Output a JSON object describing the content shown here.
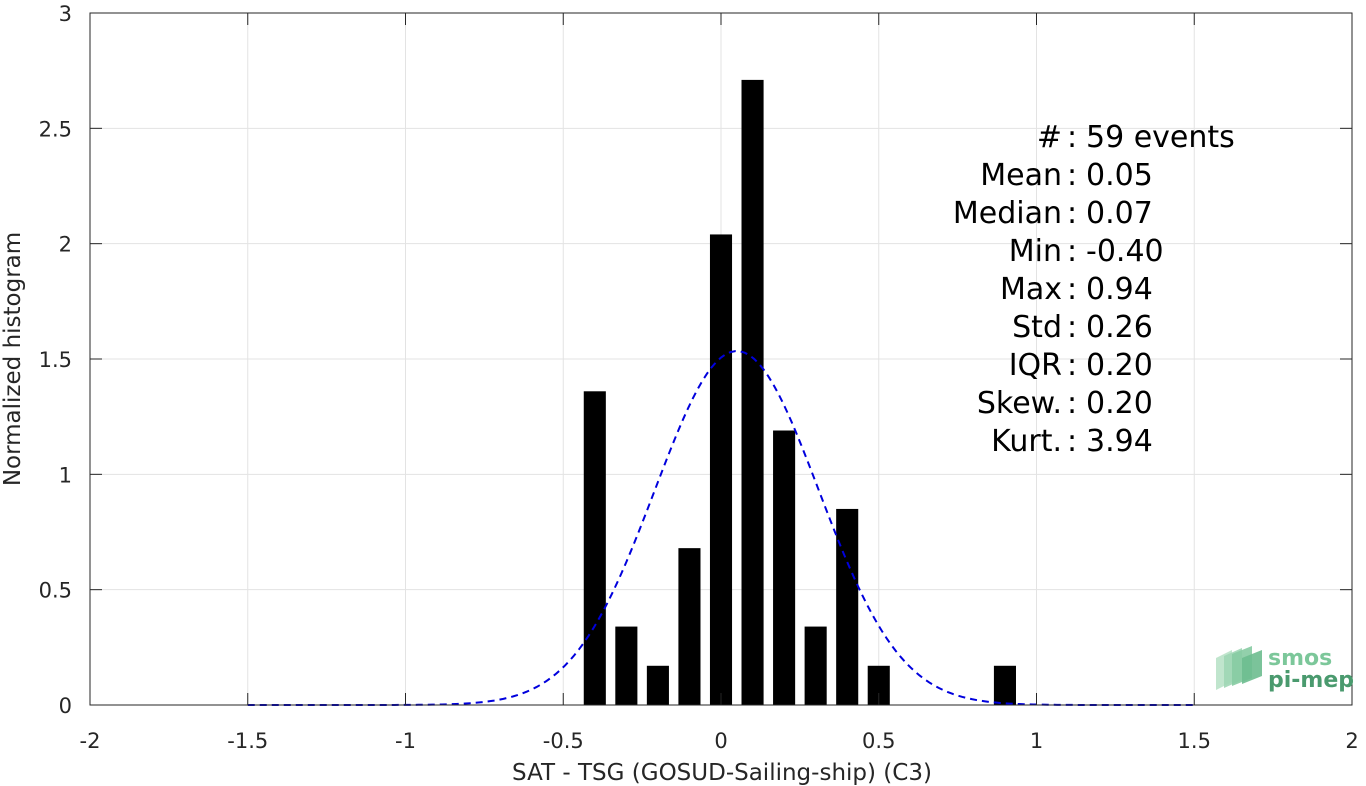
{
  "chart_data": {
    "type": "bar",
    "xlabel": "SAT - TSG (GOSUD-Sailing-ship) (C3)",
    "ylabel": "Normalized histogram",
    "xlim": [
      -2,
      2
    ],
    "ylim": [
      0,
      3
    ],
    "xticks": [
      -2,
      -1.5,
      -1,
      -0.5,
      0,
      0.5,
      1,
      1.5,
      2
    ],
    "yticks": [
      0,
      0.5,
      1,
      1.5,
      2,
      2.5,
      3
    ],
    "xtick_labels": [
      "-2",
      "-1.5",
      "-1",
      "-0.5",
      "0",
      "0.5",
      "1",
      "1.5",
      "2"
    ],
    "ytick_labels": [
      "0",
      "0.5",
      "1",
      "1.5",
      "2",
      "2.5",
      "3"
    ],
    "grid": true,
    "bar_color": "#000000",
    "bar_width": 0.07,
    "bins": {
      "x": [
        -0.4,
        -0.3,
        -0.2,
        -0.1,
        0.0,
        0.1,
        0.2,
        0.3,
        0.4,
        0.5,
        0.9
      ],
      "values": [
        1.36,
        0.34,
        0.17,
        0.68,
        2.04,
        2.71,
        1.19,
        0.34,
        0.85,
        0.17,
        0.17
      ]
    },
    "fit_curve": {
      "style": "dashed",
      "color": "#0000dd",
      "x_range": [
        -1.5,
        1.5
      ],
      "mean": 0.05,
      "std": 0.26
    },
    "stats": [
      {
        "label": "#",
        "value": "59 events"
      },
      {
        "label": "Mean",
        "value": "0.05"
      },
      {
        "label": "Median",
        "value": "0.07"
      },
      {
        "label": "Min",
        "value": "-0.40"
      },
      {
        "label": "Max",
        "value": "0.94"
      },
      {
        "label": "Std",
        "value": "0.26"
      },
      {
        "label": "IQR",
        "value": "0.20"
      },
      {
        "label": "Skew.",
        "value": "0.20"
      },
      {
        "label": "Kurt.",
        "value": "3.94"
      }
    ]
  },
  "logo": {
    "line1": "smos",
    "line2": "pi-mep",
    "color1": "#7cc79a",
    "color2": "#4a9a6e"
  }
}
